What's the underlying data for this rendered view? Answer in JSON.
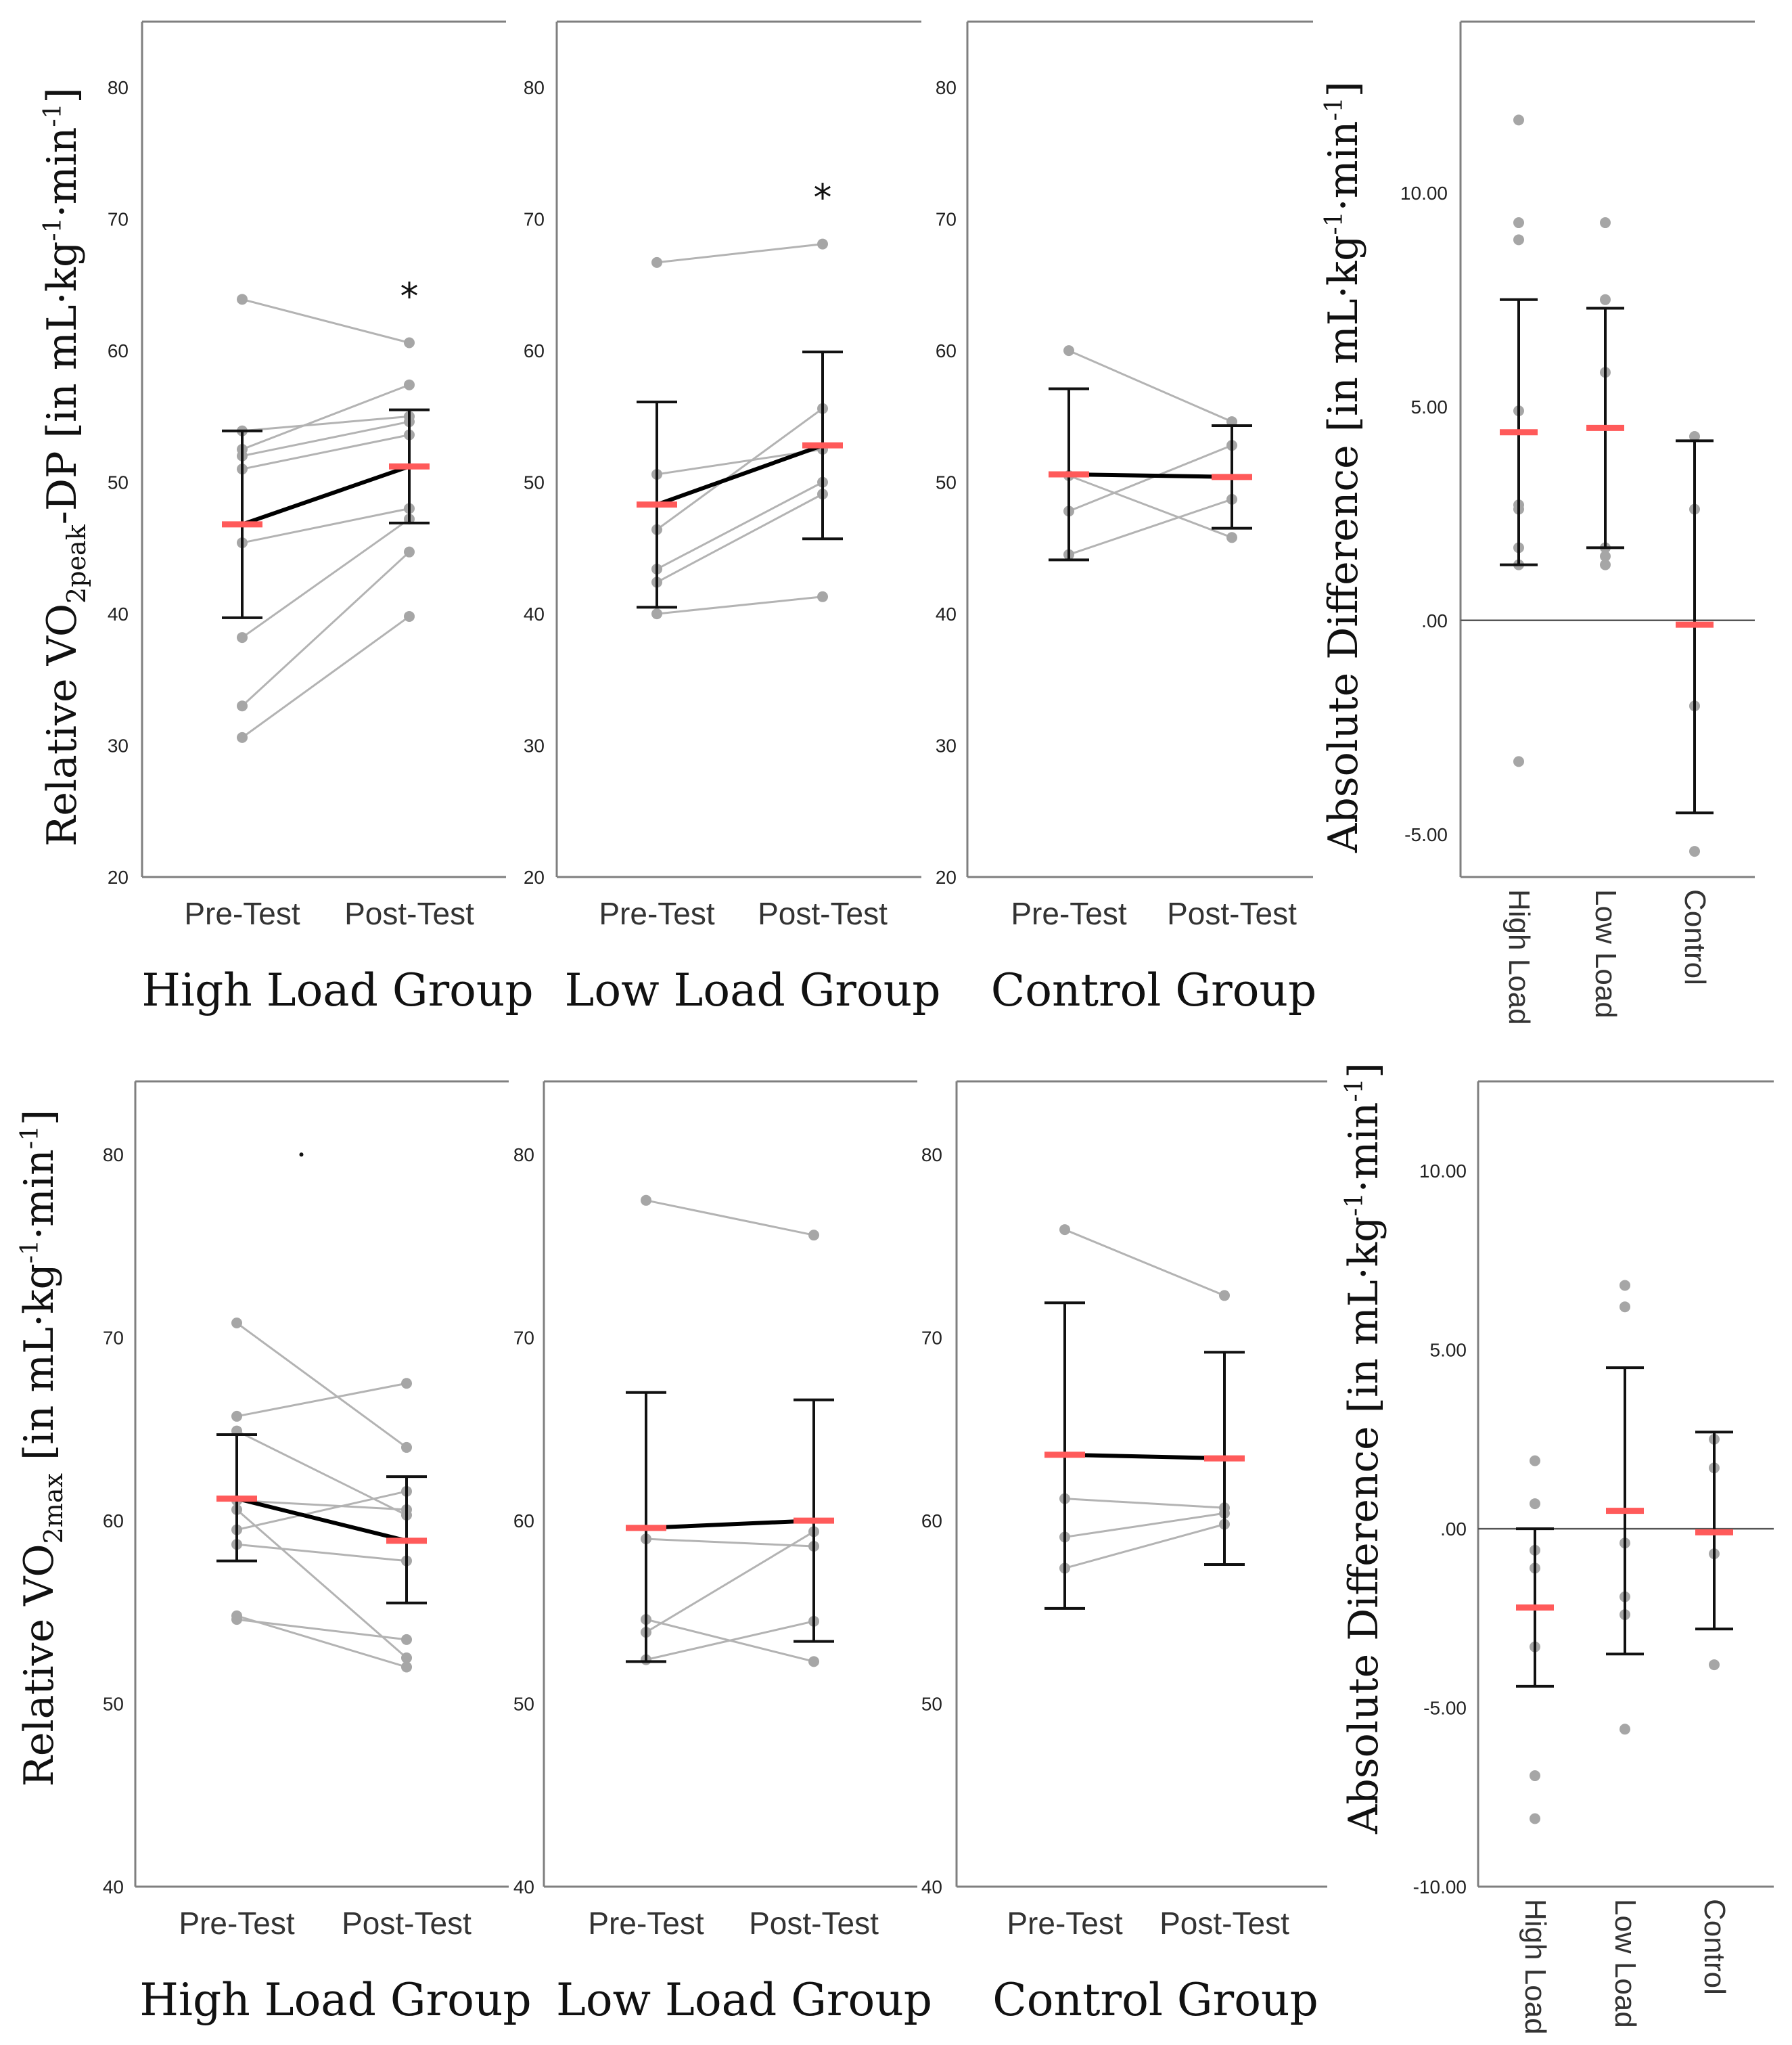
{
  "figure": {
    "panels_row1": {
      "ylabel": {
        "pre": "Relative VO",
        "sub": "2peak",
        "mid": "-DP [in mL·kg",
        "sup1": "-1",
        "mid2": "·min",
        "sup2": "-1",
        "post": "]"
      }
    },
    "panels_row2": {
      "ylabel": {
        "pre": "Relative VO",
        "sub": "2max",
        "mid": " [in mL·kg",
        "sup1": "-1",
        "mid2": "·min",
        "sup2": "-1",
        "post": "]"
      }
    },
    "diff_ylabel": {
      "pre": "Absolute Difference [in mL·kg",
      "sup1": "-1",
      "mid": "·min",
      "sup2": "-1",
      "post": "]"
    },
    "colors": {
      "mean": "#ff5a5a",
      "meanline": "#000000",
      "dots": "#a6a6a6",
      "lines": "#b3b3b3",
      "axis": "#7f7f7f"
    }
  },
  "chart_data": [
    {
      "type": "scatter",
      "panel": "row1-high",
      "title": "High Load Group",
      "categories": [
        "Pre-Test",
        "Post-Test"
      ],
      "ylim": [
        20,
        85
      ],
      "yticks": [
        20,
        30,
        40,
        50,
        60,
        70,
        80
      ],
      "pre": [
        63.9,
        53.9,
        52.5,
        52.0,
        51.0,
        45.4,
        38.2,
        33.0,
        30.6
      ],
      "post": [
        60.6,
        55.0,
        57.4,
        54.6,
        53.6,
        48.0,
        47.2,
        44.7,
        39.8
      ],
      "mean": [
        46.8,
        51.2
      ],
      "ci_low": [
        39.7,
        46.9
      ],
      "ci_high": [
        53.9,
        55.5
      ],
      "significance": "*"
    },
    {
      "type": "scatter",
      "panel": "row1-low",
      "title": "Low Load Group",
      "categories": [
        "Pre-Test",
        "Post-Test"
      ],
      "ylim": [
        20,
        85
      ],
      "yticks": [
        20,
        30,
        40,
        50,
        60,
        70,
        80
      ],
      "pre": [
        66.7,
        50.6,
        46.4,
        43.4,
        42.4,
        40.0
      ],
      "post": [
        68.1,
        52.5,
        55.6,
        50.0,
        49.1,
        41.3
      ],
      "mean": [
        48.3,
        52.8
      ],
      "ci_low": [
        40.5,
        45.7
      ],
      "ci_high": [
        56.1,
        59.9
      ],
      "significance": "*"
    },
    {
      "type": "scatter",
      "panel": "row1-control",
      "title": "Control Group",
      "categories": [
        "Pre-Test",
        "Post-Test"
      ],
      "ylim": [
        20,
        85
      ],
      "yticks": [
        20,
        30,
        40,
        50,
        60,
        70,
        80
      ],
      "pre": [
        60.0,
        50.5,
        47.8,
        44.5
      ],
      "post": [
        54.6,
        45.8,
        52.8,
        48.7
      ],
      "mean": [
        50.6,
        50.4
      ],
      "ci_low": [
        44.1,
        46.5
      ],
      "ci_high": [
        57.1,
        54.3
      ],
      "significance": ""
    },
    {
      "type": "scatter",
      "panel": "row1-diff",
      "categories": [
        "High Load",
        "Low Load",
        "Control"
      ],
      "ylim": [
        -6,
        14
      ],
      "yticks": [
        -5.0,
        0.0,
        5.0,
        10.0
      ],
      "ytick_labels": [
        "-5.00",
        ".00",
        "5.00",
        "10.00"
      ],
      "points": [
        [
          11.7,
          9.3,
          8.9,
          4.9,
          2.7,
          2.6,
          1.7,
          1.3,
          -3.3
        ],
        [
          9.3,
          7.5,
          5.8,
          1.7,
          1.5,
          1.3
        ],
        [
          4.3,
          2.6,
          -2.0,
          -5.4
        ]
      ],
      "mean": [
        4.4,
        4.5,
        -0.1
      ],
      "ci_low": [
        1.3,
        1.7,
        -4.5
      ],
      "ci_high": [
        7.5,
        7.3,
        4.2
      ]
    },
    {
      "type": "scatter",
      "panel": "row2-high",
      "title": "High Load Group",
      "categories": [
        "Pre-Test",
        "Post-Test"
      ],
      "ylim": [
        40,
        84
      ],
      "yticks": [
        40,
        50,
        60,
        70,
        80
      ],
      "pre": [
        70.8,
        65.7,
        64.9,
        61.1,
        60.6,
        59.5,
        58.7,
        54.6,
        54.8
      ],
      "post": [
        64.0,
        67.5,
        60.3,
        60.6,
        52.5,
        61.6,
        57.8,
        53.5,
        52.0
      ],
      "mean": [
        61.2,
        58.9
      ],
      "ci_low": [
        57.8,
        55.5
      ],
      "ci_high": [
        64.7,
        62.4
      ],
      "dot_mark": [
        1,
        80.0
      ]
    },
    {
      "type": "scatter",
      "panel": "row2-low",
      "title": "Low Load Group",
      "categories": [
        "Pre-Test",
        "Post-Test"
      ],
      "ylim": [
        40,
        84
      ],
      "yticks": [
        40,
        50,
        60,
        70,
        80
      ],
      "pre": [
        77.5,
        59.0,
        54.6,
        53.9,
        52.4
      ],
      "post": [
        75.6,
        58.6,
        52.3,
        59.4,
        54.5
      ],
      "mean": [
        59.6,
        60.0
      ],
      "ci_low": [
        52.3,
        53.4
      ],
      "ci_high": [
        67.0,
        66.6
      ]
    },
    {
      "type": "scatter",
      "panel": "row2-control",
      "title": "Control Group",
      "categories": [
        "Pre-Test",
        "Post-Test"
      ],
      "ylim": [
        40,
        84
      ],
      "yticks": [
        40,
        50,
        60,
        70,
        80
      ],
      "pre": [
        75.9,
        61.2,
        59.1,
        57.4
      ],
      "post": [
        72.3,
        60.7,
        60.4,
        59.8
      ],
      "mean": [
        63.6,
        63.4
      ],
      "ci_low": [
        55.2,
        57.6
      ],
      "ci_high": [
        71.9,
        69.2
      ]
    },
    {
      "type": "scatter",
      "panel": "row2-diff",
      "categories": [
        "High Load",
        "Low Load",
        "Control"
      ],
      "ylim": [
        -10,
        12.5
      ],
      "yticks": [
        -10.0,
        -5.0,
        0.0,
        5.0,
        10.0
      ],
      "ytick_labels": [
        "-10.00",
        "-5.00",
        ".00",
        "5.00",
        "10.00"
      ],
      "points": [
        [
          1.9,
          0.7,
          -0.6,
          -1.1,
          -3.3,
          -6.9,
          -8.1
        ],
        [
          6.8,
          6.2,
          -0.4,
          -1.9,
          -2.4,
          -5.6
        ],
        [
          2.5,
          1.7,
          -0.7,
          -3.8
        ]
      ],
      "mean": [
        -2.2,
        0.5,
        -0.1
      ],
      "ci_low": [
        -4.4,
        -3.5,
        -2.8
      ],
      "ci_high": [
        0.0,
        4.5,
        2.7
      ]
    }
  ]
}
